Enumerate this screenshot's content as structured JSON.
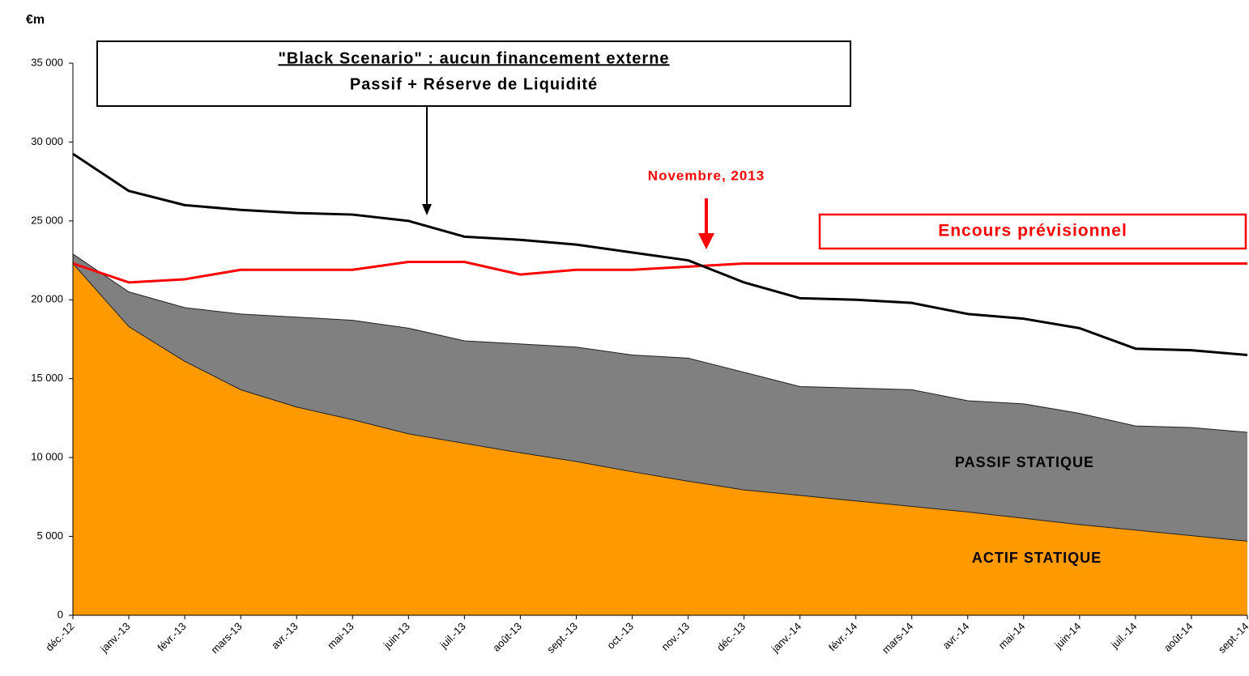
{
  "chart_data": {
    "type": "area",
    "ylabel": "€m",
    "categories": [
      "déc.-12",
      "janv.-13",
      "févr.-13",
      "mars-13",
      "avr.-13",
      "mai-13",
      "juin-13",
      "juil.-13",
      "août-13",
      "sept.-13",
      "oct.-13",
      "nov.-13",
      "déc.-13",
      "janv.-14",
      "févr.-14",
      "mars-14",
      "avr.-14",
      "mai-14",
      "juin-14",
      "juil.-14",
      "août-14",
      "sept.-14"
    ],
    "series": [
      {
        "name": "PASSIF STATIQUE",
        "kind": "area",
        "color": "#808080",
        "values": [
          22900,
          20500,
          19500,
          19100,
          18900,
          18700,
          18200,
          17400,
          17200,
          17000,
          16500,
          16300,
          15400,
          14500,
          14400,
          14300,
          13600,
          13400,
          12800,
          12000,
          11900,
          11600
        ]
      },
      {
        "name": "ACTIF STATIQUE",
        "kind": "area",
        "color": "#ff9900",
        "values": [
          22300,
          18300,
          16100,
          14300,
          13200,
          12400,
          11500,
          10900,
          10300,
          9750,
          9100,
          8500,
          7950,
          7600,
          7250,
          6900,
          6550,
          6150,
          5750,
          5400,
          5050,
          4700
        ]
      },
      {
        "name": "Encours prévisionnel",
        "kind": "line",
        "color": "#ff0000",
        "values": [
          22300,
          21100,
          21300,
          21900,
          21900,
          21900,
          22400,
          22400,
          21600,
          21900,
          21900,
          22100,
          22300,
          22300,
          22300,
          22300,
          22300,
          22300,
          22300,
          22300,
          22300,
          22300
        ]
      },
      {
        "name": "Passif + Réserve de Liquidité",
        "kind": "line",
        "color": "#000000",
        "values": [
          29250,
          26900,
          26000,
          25700,
          25500,
          25400,
          25000,
          24000,
          23800,
          23500,
          23000,
          22500,
          21100,
          20100,
          20000,
          19800,
          19100,
          18800,
          18200,
          16900,
          16800,
          16500
        ]
      }
    ],
    "annotations": [
      "\"Black Scenario\" : aucun financement externe",
      "Novembre, 2013"
    ],
    "ylim": [
      0,
      35000
    ],
    "yticks": [
      0,
      {
        "value": 5000,
        "label": "5 000"
      },
      {
        "value": 10000,
        "label": "10 000"
      },
      {
        "value": 15000,
        "label": "15 000"
      },
      {
        "value": 20000,
        "label": "20 000"
      },
      {
        "value": 25000,
        "label": "25 000"
      },
      {
        "value": 30000,
        "label": "30 000"
      },
      {
        "value": 35000,
        "label": "35 000"
      }
    ],
    "grid": false
  }
}
